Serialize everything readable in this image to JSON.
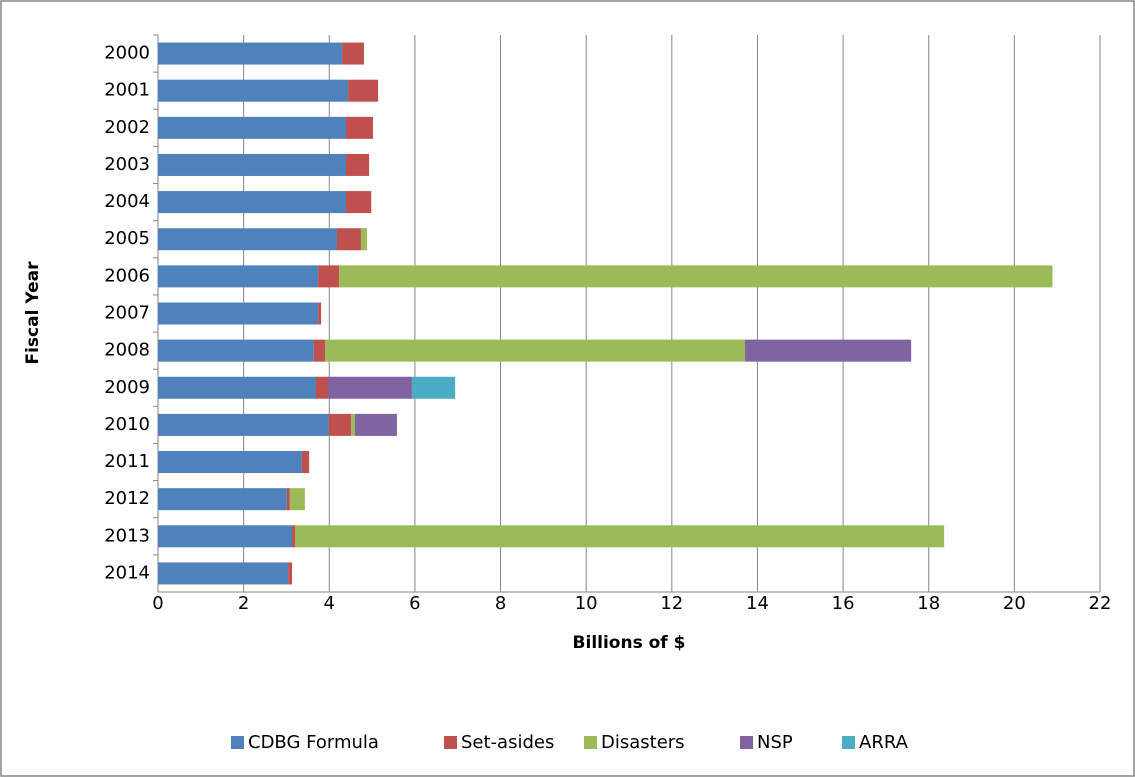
{
  "chart_data": {
    "type": "stacked_bar_horizontal",
    "y_axis_label": "Fiscal Year",
    "x_axis_label": "Billions of $",
    "categories": [
      "2000",
      "2001",
      "2002",
      "2003",
      "2004",
      "2005",
      "2006",
      "2007",
      "2008",
      "2009",
      "2010",
      "2011",
      "2012",
      "2013",
      "2014"
    ],
    "series": [
      {
        "name": "CDBG Formula",
        "color": "#4f81bd",
        "values": [
          4.3,
          4.44,
          4.39,
          4.39,
          4.39,
          4.18,
          3.74,
          3.74,
          3.64,
          3.69,
          3.99,
          3.36,
          3.01,
          3.13,
          3.04
        ]
      },
      {
        "name": "Set-asides",
        "color": "#c0504d",
        "values": [
          0.51,
          0.7,
          0.63,
          0.54,
          0.59,
          0.56,
          0.49,
          0.07,
          0.26,
          0.28,
          0.52,
          0.17,
          0.07,
          0.07,
          0.09
        ]
      },
      {
        "name": "Disasters",
        "color": "#9bbb59",
        "values": [
          0,
          0,
          0,
          0,
          0,
          0.14,
          16.66,
          0,
          9.81,
          0,
          0.09,
          0,
          0.35,
          15.16,
          0
        ]
      },
      {
        "name": "NSP",
        "color": "#8064a2",
        "values": [
          0,
          0,
          0,
          0,
          0,
          0,
          0,
          0,
          3.88,
          1.96,
          0.98,
          0,
          0,
          0,
          0
        ]
      },
      {
        "name": "ARRA",
        "color": "#4bacc6",
        "values": [
          0,
          0,
          0,
          0,
          0,
          0,
          0,
          0,
          0,
          1.01,
          0,
          0,
          0,
          0,
          0
        ]
      }
    ],
    "xlim": [
      0,
      22
    ],
    "xticks": [
      0,
      2,
      4,
      6,
      8,
      10,
      12,
      14,
      16,
      18,
      20,
      22
    ],
    "grid": true,
    "legend": "bottom"
  }
}
